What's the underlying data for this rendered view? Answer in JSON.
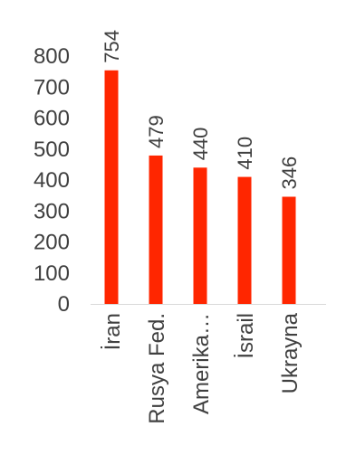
{
  "chart_data": {
    "type": "bar",
    "categories": [
      "İran",
      "Rusya Fed.",
      "Amerika…",
      "İsrail",
      "Ukrayna"
    ],
    "values": [
      754,
      479,
      440,
      410,
      346
    ],
    "ylim": [
      0,
      800
    ],
    "yticks": [
      0,
      100,
      200,
      300,
      400,
      500,
      600,
      700,
      800
    ],
    "grid": false,
    "legend": "none",
    "title": "",
    "xlabel": "",
    "ylabel": "",
    "colors": {
      "bar": "#ff2600",
      "axis": "#d9d9d9",
      "text": "#404040"
    }
  }
}
